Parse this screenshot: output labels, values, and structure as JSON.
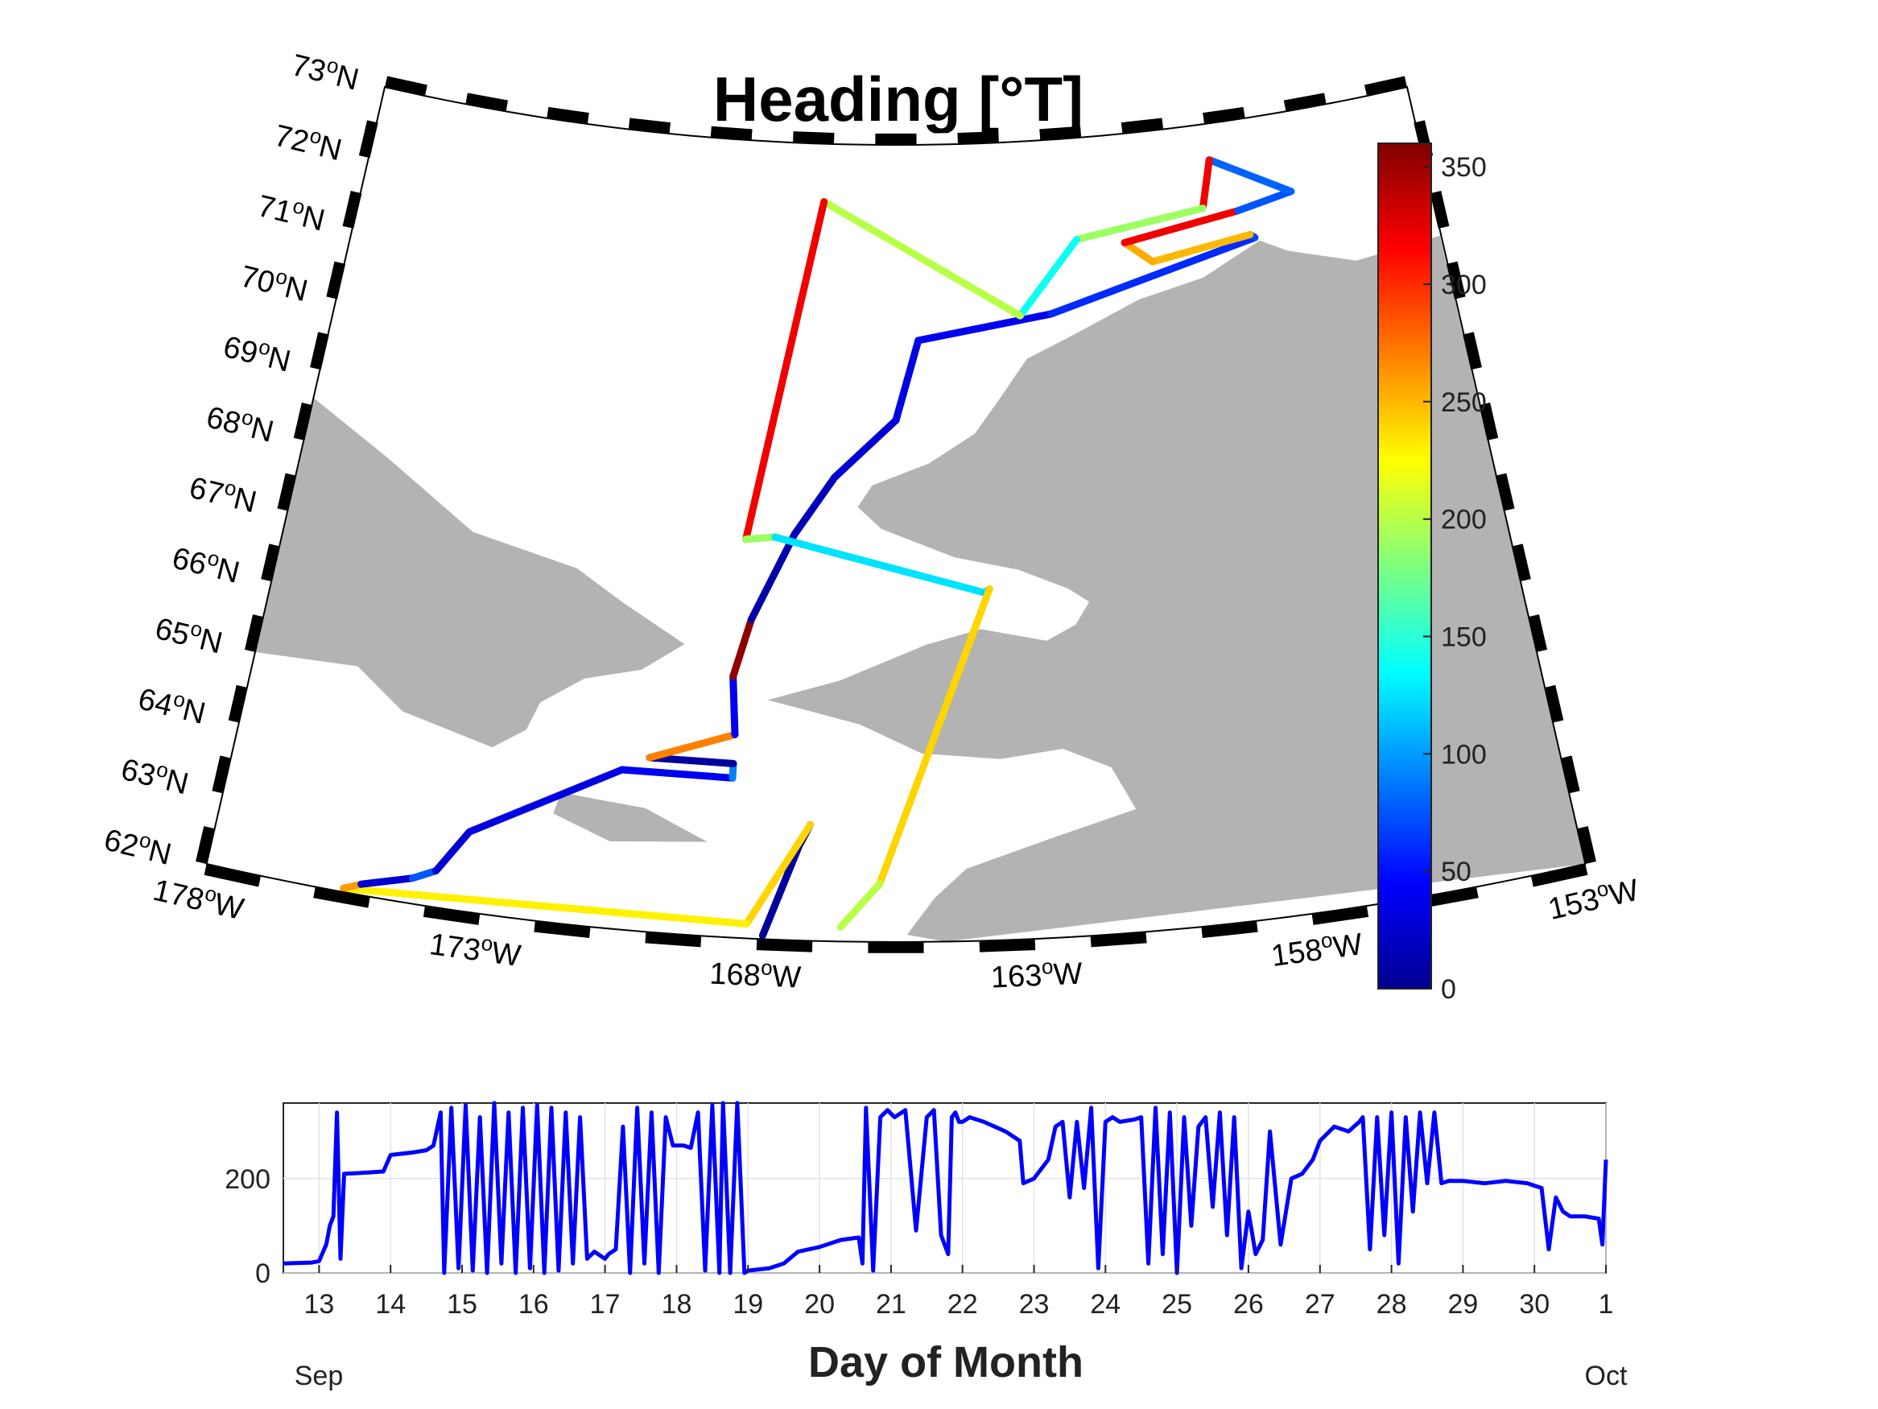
{
  "figure": {
    "title": "Heading [°T]",
    "colors": {
      "land": "#b3b3b3",
      "track_line": "#0000ff",
      "frame": "#000000"
    }
  },
  "chart_data": [
    {
      "type": "map",
      "title": "Heading [°T]",
      "projection": "conic",
      "lat_range": [
        62,
        73
      ],
      "lon_range": [
        -178,
        -153
      ],
      "lat_labels": [
        {
          "value": "73",
          "unit": "o",
          "hemi": "N"
        },
        {
          "value": "72",
          "unit": "o",
          "hemi": "N"
        },
        {
          "value": "71",
          "unit": "o",
          "hemi": "N"
        },
        {
          "value": "70",
          "unit": "o",
          "hemi": "N"
        },
        {
          "value": "69",
          "unit": "o",
          "hemi": "N"
        },
        {
          "value": "68",
          "unit": "o",
          "hemi": "N"
        },
        {
          "value": "67",
          "unit": "o",
          "hemi": "N"
        },
        {
          "value": "66",
          "unit": "o",
          "hemi": "N"
        },
        {
          "value": "65",
          "unit": "o",
          "hemi": "N"
        },
        {
          "value": "64",
          "unit": "o",
          "hemi": "N"
        },
        {
          "value": "63",
          "unit": "o",
          "hemi": "N"
        },
        {
          "value": "62",
          "unit": "o",
          "hemi": "N"
        }
      ],
      "lon_labels": [
        {
          "value": "178",
          "unit": "o",
          "hemi": "W"
        },
        {
          "value": "173",
          "unit": "o",
          "hemi": "W"
        },
        {
          "value": "168",
          "unit": "o",
          "hemi": "W"
        },
        {
          "value": "163",
          "unit": "o",
          "hemi": "W"
        },
        {
          "value": "158",
          "unit": "o",
          "hemi": "W"
        },
        {
          "value": "153",
          "unit": "o",
          "hemi": "W"
        }
      ],
      "colorbar": {
        "colormap": "jet",
        "range": [
          0,
          360
        ],
        "ticks": [
          "0",
          "50",
          "100",
          "150",
          "200",
          "250",
          "300",
          "350"
        ]
      },
      "track": [
        {
          "lat": 62.05,
          "lon": -167.9,
          "heading": 10
        },
        {
          "lat": 63.3,
          "lon": -167.3,
          "heading": 15
        },
        {
          "lat": 63.6,
          "lon": -167.1,
          "heading": 355
        },
        {
          "lat": 63.6,
          "lon": -167.1,
          "heading": 240
        },
        {
          "lat": 62.2,
          "lon": -168.2,
          "heading": 230
        },
        {
          "lat": 62.05,
          "lon": -175.5,
          "heading": 260
        },
        {
          "lat": 62.15,
          "lon": -175.2,
          "heading": 30
        },
        {
          "lat": 62.35,
          "lon": -174.3,
          "heading": 75
        },
        {
          "lat": 62.5,
          "lon": -173.9,
          "heading": 30
        },
        {
          "lat": 63.1,
          "lon": -173.4,
          "heading": 35
        },
        {
          "lat": 64.2,
          "lon": -170.7,
          "heading": 40
        },
        {
          "lat": 64.2,
          "lon": -168.6,
          "heading": 90
        },
        {
          "lat": 64.4,
          "lon": -168.6,
          "heading": 10
        },
        {
          "lat": 64.4,
          "lon": -170.2,
          "heading": 270
        },
        {
          "lat": 64.8,
          "lon": -168.6,
          "heading": 40
        },
        {
          "lat": 65.6,
          "lon": -168.7,
          "heading": 355
        },
        {
          "lat": 66.4,
          "lon": -168.4,
          "heading": 15
        },
        {
          "lat": 67.6,
          "lon": -167.6,
          "heading": 20
        },
        {
          "lat": 68.4,
          "lon": -166.8,
          "heading": 30
        },
        {
          "lat": 69.2,
          "lon": -165.5,
          "heading": 35
        },
        {
          "lat": 70.3,
          "lon": -165.0,
          "heading": 40
        },
        {
          "lat": 70.6,
          "lon": -162.0,
          "heading": 60
        },
        {
          "lat": 71.35,
          "lon": -157.2,
          "heading": 70
        },
        {
          "lat": 71.4,
          "lon": -157.3,
          "heading": 250
        },
        {
          "lat": 71.2,
          "lon": -159.6,
          "heading": 255
        },
        {
          "lat": 71.5,
          "lon": -160.2,
          "heading": 320
        },
        {
          "lat": 71.75,
          "lon": -157.5,
          "heading": 75
        },
        {
          "lat": 71.9,
          "lon": -156.2,
          "heading": 80
        },
        {
          "lat": 72.5,
          "lon": -158.0,
          "heading": 320
        },
        {
          "lat": 71.85,
          "lon": -158.3,
          "heading": 190
        },
        {
          "lat": 71.6,
          "lon": -161.3,
          "heading": 140
        },
        {
          "lat": 70.6,
          "lon": -162.7,
          "heading": 200
        },
        {
          "lat": 72.2,
          "lon": -167.2,
          "heading": 320
        },
        {
          "lat": 67.5,
          "lon": -168.6,
          "heading": 190
        },
        {
          "lat": 67.55,
          "lon": -168.0,
          "heading": 125
        },
        {
          "lat": 66.8,
          "lon": -163.7,
          "heading": 120
        },
        {
          "lat": 66.85,
          "lon": -163.6,
          "heading": 240
        },
        {
          "lat": 62.8,
          "lon": -165.8,
          "heading": 200
        },
        {
          "lat": 62.2,
          "lon": -166.5,
          "heading": 260
        }
      ]
    },
    {
      "type": "line",
      "xlabel": "Day of Month",
      "ylabel": "",
      "xlim": [
        12.5,
        31.0
      ],
      "ylim": [
        0,
        360
      ],
      "x_ticks": [
        "13",
        "14",
        "15",
        "16",
        "17",
        "18",
        "19",
        "20",
        "21",
        "22",
        "23",
        "24",
        "25",
        "26",
        "27",
        "28",
        "29",
        "30",
        "1"
      ],
      "y_ticks": [
        "0",
        "200"
      ],
      "month_start": "Sep",
      "month_end": "Oct",
      "series": [
        {
          "color": "#0000ff",
          "x": [
            12.5,
            12.9,
            13.0,
            13.1,
            13.15,
            13.2,
            13.25,
            13.3,
            13.35,
            13.6,
            13.9,
            14.0,
            14.3,
            14.5,
            14.55,
            14.6,
            14.7,
            14.75,
            14.85,
            14.95,
            15.05,
            15.15,
            15.25,
            15.35,
            15.45,
            15.55,
            15.65,
            15.75,
            15.85,
            15.95,
            16.05,
            16.15,
            16.25,
            16.35,
            16.45,
            16.55,
            16.65,
            16.75,
            16.85,
            17.0,
            17.05,
            17.15,
            17.25,
            17.35,
            17.45,
            17.55,
            17.65,
            17.75,
            17.85,
            17.95,
            18.0,
            18.1,
            18.2,
            18.3,
            18.4,
            18.5,
            18.6,
            18.65,
            18.75,
            18.85,
            18.95,
            19.0,
            19.3,
            19.5,
            19.7,
            20.0,
            20.3,
            20.55,
            20.6,
            20.65,
            20.75,
            20.85,
            20.95,
            21.05,
            21.2,
            21.35,
            21.5,
            21.6,
            21.7,
            21.8,
            21.85,
            21.9,
            21.95,
            22.0,
            22.1,
            22.3,
            22.6,
            22.8,
            22.85,
            23.0,
            23.2,
            23.3,
            23.4,
            23.5,
            23.6,
            23.7,
            23.8,
            23.9,
            24.0,
            24.1,
            24.2,
            24.4,
            24.5,
            24.6,
            24.7,
            24.8,
            24.9,
            25.0,
            25.1,
            25.2,
            25.3,
            25.4,
            25.5,
            25.6,
            25.7,
            25.8,
            25.9,
            26.0,
            26.1,
            26.2,
            26.3,
            26.45,
            26.6,
            26.75,
            26.9,
            27.0,
            27.2,
            27.4,
            27.55,
            27.6,
            27.7,
            27.8,
            27.9,
            28.0,
            28.1,
            28.2,
            28.3,
            28.4,
            28.5,
            28.6,
            28.7,
            28.8,
            29.0,
            29.3,
            29.6,
            29.9,
            30.0,
            30.1,
            30.2,
            30.3,
            30.4,
            30.5,
            30.7,
            30.9,
            30.95,
            31.0
          ],
          "y": [
            20,
            22,
            25,
            60,
            100,
            120,
            340,
            30,
            210,
            212,
            215,
            250,
            255,
            260,
            265,
            270,
            340,
            0,
            350,
            10,
            355,
            5,
            330,
            0,
            360,
            20,
            340,
            0,
            350,
            10,
            355,
            0,
            350,
            5,
            340,
            20,
            330,
            30,
            45,
            30,
            40,
            50,
            310,
            0,
            350,
            20,
            340,
            0,
            330,
            270,
            270,
            270,
            265,
            340,
            5,
            355,
            0,
            360,
            0,
            360,
            0,
            5,
            10,
            20,
            45,
            55,
            70,
            75,
            20,
            350,
            5,
            330,
            345,
            330,
            345,
            90,
            330,
            345,
            80,
            40,
            330,
            340,
            320,
            320,
            330,
            320,
            300,
            280,
            190,
            200,
            240,
            310,
            320,
            160,
            320,
            180,
            350,
            10,
            320,
            330,
            320,
            325,
            330,
            20,
            350,
            40,
            340,
            0,
            330,
            100,
            310,
            330,
            140,
            340,
            80,
            330,
            10,
            130,
            40,
            70,
            300,
            60,
            200,
            210,
            240,
            280,
            310,
            300,
            320,
            330,
            50,
            330,
            80,
            340,
            20,
            330,
            130,
            340,
            190,
            340,
            190,
            195,
            195,
            190,
            195,
            190,
            185,
            180,
            50,
            160,
            130,
            120,
            120,
            115,
            60,
            240
          ]
        }
      ]
    }
  ]
}
